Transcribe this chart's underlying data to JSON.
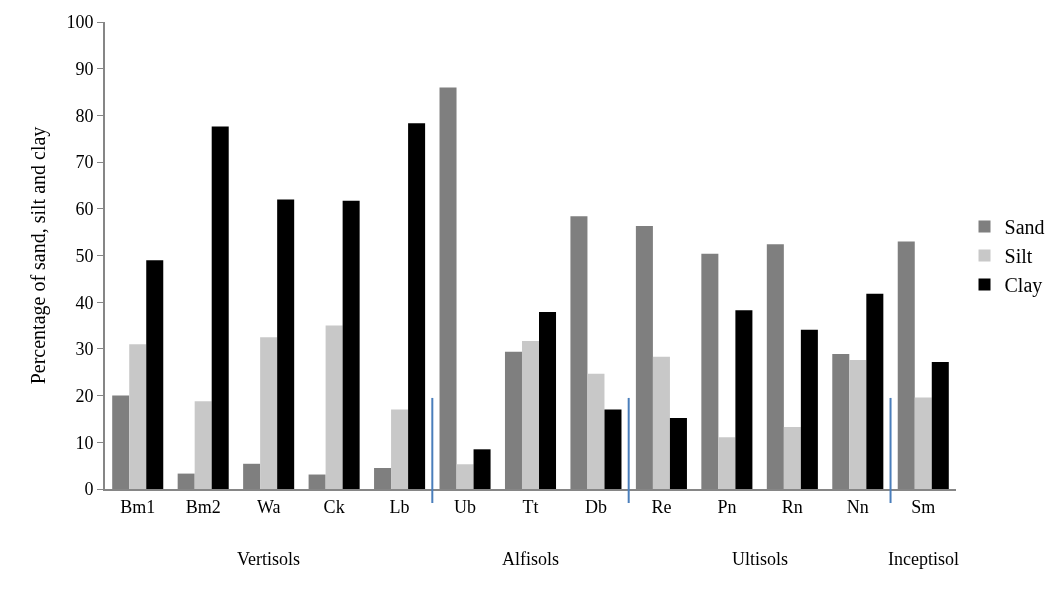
{
  "chart_data": {
    "type": "bar",
    "ylabel": "Percentage of sand, silt and clay",
    "categories": [
      "Bm1",
      "Bm2",
      "Wa",
      "Ck",
      "Lb",
      "Ub",
      "Tt",
      "Db",
      "Re",
      "Pn",
      "Rn",
      "Nn",
      "Sm"
    ],
    "series": [
      {
        "name": "Sand",
        "color": "#7f7f7f",
        "values": [
          20,
          3.3,
          5.4,
          3.1,
          4.5,
          86,
          29.4,
          58.4,
          56.3,
          50.4,
          52.4,
          28.9,
          53
        ]
      },
      {
        "name": "Silt",
        "color": "#c8c8c8",
        "values": [
          31,
          18.8,
          32.5,
          35,
          17,
          5.3,
          31.7,
          24.7,
          28.3,
          11.1,
          13.3,
          27.6,
          19.6
        ]
      },
      {
        "name": "Clay",
        "color": "#000000",
        "values": [
          49,
          77.6,
          62,
          61.7,
          78.3,
          8.5,
          37.9,
          17,
          15.2,
          38.3,
          34.1,
          41.8,
          27.2
        ]
      }
    ],
    "ylim": [
      0,
      100
    ],
    "yticks": [
      0,
      10,
      20,
      30,
      40,
      50,
      60,
      70,
      80,
      90,
      100
    ],
    "ref_lines": [
      {
        "axis": "x",
        "value": "Ub",
        "color": "#4a7ebb"
      },
      {
        "axis": "x",
        "value": "Re",
        "color": "#4a7ebb"
      },
      {
        "axis": "x",
        "value": "Sm",
        "color": "#4a7ebb"
      }
    ],
    "annotations": [
      "Vertisols",
      "Alfisols",
      "Ultisols",
      "Inceptisol"
    ],
    "legend": "right"
  }
}
